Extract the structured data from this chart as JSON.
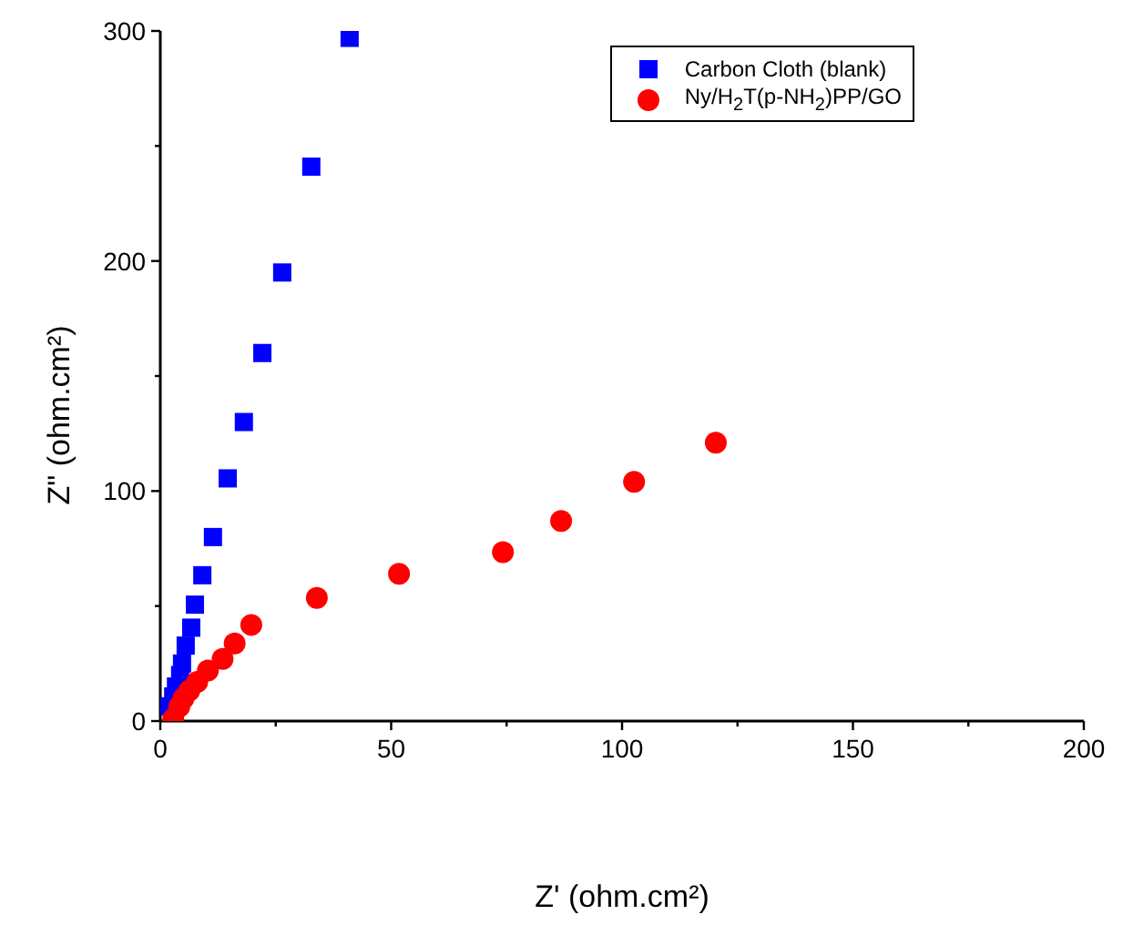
{
  "chart_data": {
    "type": "scatter",
    "xlabel": "Z' (ohm.cm²)",
    "ylabel": "Z\" (ohm.cm²)",
    "xlim": [
      0,
      200
    ],
    "ylim": [
      0,
      300
    ],
    "xticks": [
      0,
      {
        "value": 25,
        "label": null
      },
      50,
      {
        "value": 75,
        "label": null
      },
      100,
      {
        "value": 125,
        "label": null
      },
      150,
      {
        "value": 175,
        "label": null
      },
      200
    ],
    "yticks": [
      0,
      {
        "value": 50,
        "label": null
      },
      100,
      {
        "value": 150,
        "label": null
      },
      200,
      {
        "value": 250,
        "label": null
      },
      300
    ],
    "grid": false,
    "legend": "top right",
    "series": [
      {
        "name": "Carbon Cloth (blank)",
        "color": "#0000ff",
        "marker": "square",
        "x": [
          2.0,
          2.8,
          3.4,
          4.3,
          4.7,
          5.5,
          6.7,
          7.5,
          9.1,
          11.4,
          14.6,
          18.1,
          22.1,
          26.4,
          32.7,
          41.0
        ],
        "values": [
          6.4,
          10.7,
          15,
          20,
          25,
          32.8,
          40.6,
          50.6,
          63.4,
          80,
          105.5,
          130,
          160,
          195,
          241,
          297
        ]
      },
      {
        "name": "Ny/H$_{2}$T(p-NH$_{2}$)PP/GO",
        "color": "#ff0000",
        "marker": "circle",
        "x": [
          2.8,
          4.1,
          5.0,
          6.3,
          8.0,
          10.3,
          13.5,
          16.1,
          19.7,
          33.9,
          51.7,
          74.2,
          86.8,
          102.6,
          120.3
        ],
        "values": [
          0.9,
          6.2,
          9.8,
          13.3,
          17,
          22,
          27,
          33.7,
          41.8,
          53.5,
          64,
          73.4,
          87,
          104,
          121
        ]
      }
    ]
  }
}
